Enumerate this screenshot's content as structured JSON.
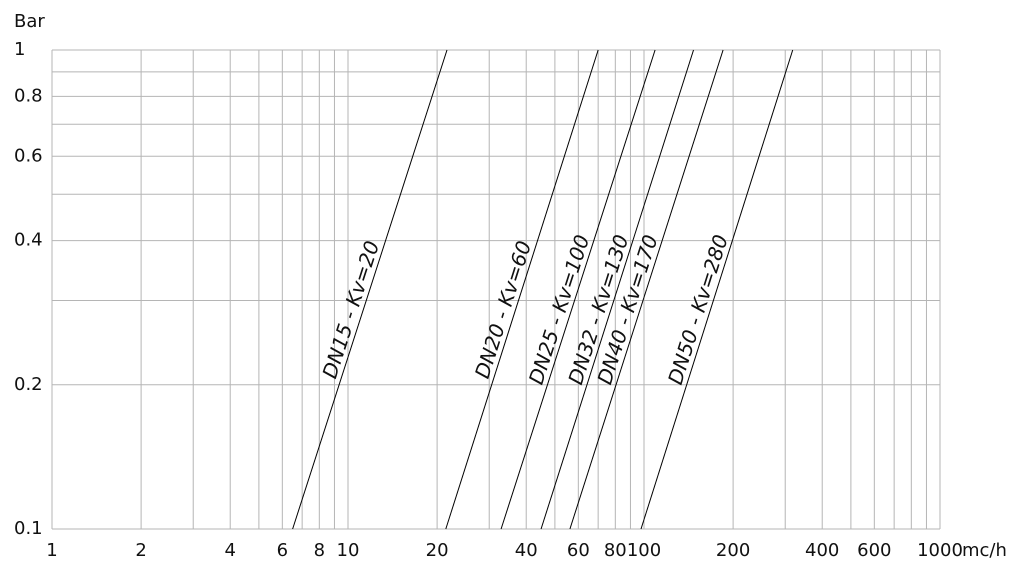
{
  "chart_data": {
    "type": "line",
    "x_label": "mc/h",
    "y_label": "Bar",
    "xscale": "log",
    "yscale": "log",
    "grid": true,
    "xlim": [
      1,
      1000
    ],
    "ylim": [
      0.1,
      1
    ],
    "xticks": [
      1,
      2,
      4,
      6,
      8,
      10,
      20,
      40,
      60,
      80,
      100,
      200,
      400,
      600,
      1000
    ],
    "xminorticks": [
      3,
      5,
      7,
      9,
      30,
      50,
      70,
      90,
      300,
      500,
      700,
      800,
      900
    ],
    "yticks": [
      0.1,
      0.2,
      0.4,
      0.6,
      0.8,
      1
    ],
    "yminorticks": [
      0.3,
      0.5,
      0.7,
      0.9
    ],
    "series": [
      {
        "name": "DN15 - Kv=20",
        "color": "#000000",
        "x": [
          6.5,
          21.6
        ],
        "values": [
          0.1,
          1
        ]
      },
      {
        "name": "DN20 - Kv=60",
        "color": "#000000",
        "x": [
          21.4,
          70
        ],
        "values": [
          0.1,
          1
        ]
      },
      {
        "name": "DN25 - Kv=100",
        "color": "#000000",
        "x": [
          32.9,
          109
        ],
        "values": [
          0.1,
          1
        ]
      },
      {
        "name": "DN32 - Kv=130",
        "color": "#000000",
        "x": [
          44.9,
          147
        ],
        "values": [
          0.1,
          1
        ]
      },
      {
        "name": "DN40 - Kv=170",
        "color": "#000000",
        "x": [
          56.2,
          185
        ],
        "values": [
          0.1,
          1
        ]
      },
      {
        "name": "DN50 - Kv=280",
        "color": "#000000",
        "x": [
          97.7,
          318
        ],
        "values": [
          0.1,
          1
        ]
      }
    ]
  }
}
